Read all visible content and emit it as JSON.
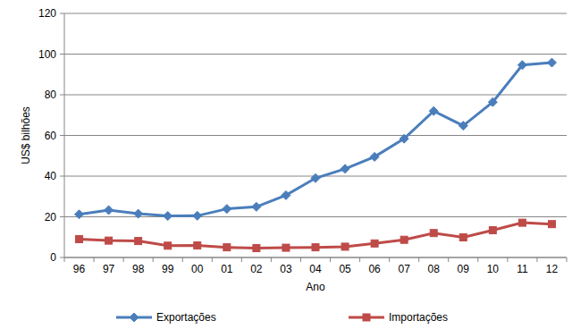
{
  "chart_data": {
    "type": "line",
    "x_label": "Ano",
    "y_label": "US$ bilhões",
    "categories": [
      "96",
      "97",
      "98",
      "99",
      "00",
      "01",
      "02",
      "03",
      "04",
      "05",
      "06",
      "07",
      "08",
      "09",
      "10",
      "11",
      "12"
    ],
    "series": [
      {
        "name": "Exportações",
        "color": "#4a7ebb",
        "marker": "diamond",
        "values": [
          21.2,
          23.3,
          21.5,
          20.4,
          20.5,
          23.9,
          24.9,
          30.6,
          39.0,
          43.6,
          49.5,
          58.4,
          72.0,
          64.8,
          76.4,
          94.6,
          95.8
        ]
      },
      {
        "name": "Importações",
        "color": "#be4b48",
        "marker": "square",
        "values": [
          9.0,
          8.3,
          8.1,
          5.8,
          5.9,
          5.0,
          4.6,
          4.8,
          5.0,
          5.3,
          6.9,
          8.7,
          12.0,
          9.9,
          13.4,
          17.1,
          16.4
        ]
      }
    ],
    "ylim": [
      0,
      120
    ],
    "yticks": [
      0,
      20,
      40,
      60,
      80,
      100,
      120
    ],
    "grid": true,
    "legend": "bottom"
  }
}
